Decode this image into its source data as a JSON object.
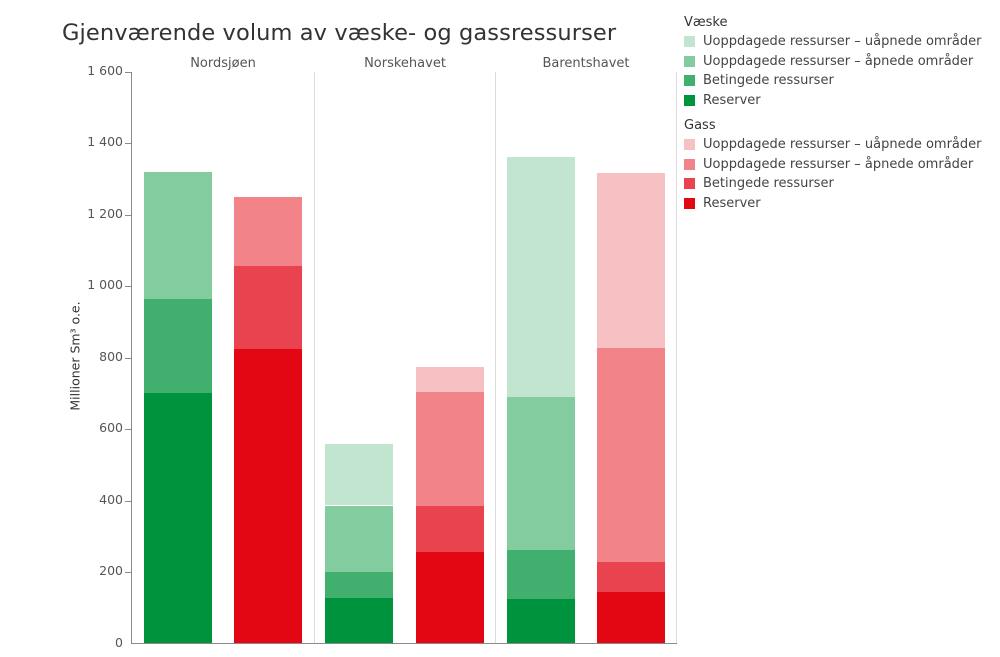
{
  "title": "Gjenværende volum av væske- og gassressurser",
  "panels": [
    "Nordsjøen",
    "Norskehavet",
    "Barentshavet"
  ],
  "y_axis": {
    "label": "Millioner Sm³ o.e.",
    "ticks": [
      "0",
      "200",
      "400",
      "600",
      "800",
      "1 000",
      "1 200",
      "1 400",
      "1 600"
    ]
  },
  "legend": {
    "groups": [
      {
        "title": "Væske",
        "items": [
          {
            "label": "Uoppdagede ressurser – uåpnede områder",
            "color": "#C1E5CF"
          },
          {
            "label": "Uoppdagede ressurser – åpnede områder",
            "color": "#83CCA0"
          },
          {
            "label": "Betingede ressurser",
            "color": "#41B06F"
          },
          {
            "label": "Reserver",
            "color": "#00933D"
          }
        ]
      },
      {
        "title": "Gass",
        "items": [
          {
            "label": "Uoppdagede ressurser – uåpnede områder",
            "color": "#F7C1C4"
          },
          {
            "label": "Uoppdagede ressurser – åpnede områder",
            "color": "#F28388"
          },
          {
            "label": "Betingede ressurser",
            "color": "#E8434E"
          },
          {
            "label": "Reserver",
            "color": "#E30613"
          }
        ]
      }
    ]
  },
  "chart_data": {
    "type": "bar",
    "stacked": true,
    "title": "Gjenværende volum av væske- og gassressurser",
    "xlabel": "",
    "ylabel": "Millioner Sm³ o.e.",
    "ylim": [
      0,
      1600
    ],
    "yticks": [
      0,
      200,
      400,
      600,
      800,
      1000,
      1200,
      1400,
      1600
    ],
    "grid": false,
    "legend_position": "right",
    "categories": [
      "Nordsjøen",
      "Norskehavet",
      "Barentshavet"
    ],
    "stack_order": [
      "Reserver",
      "Betingede ressurser",
      "Uoppdagede ressurser – åpnede områder",
      "Uoppdagede ressurser – uåpnede områder"
    ],
    "series": [
      {
        "group": "Væske",
        "name": "Reserver",
        "color": "#00933D",
        "values": [
          701,
          126,
          124
        ]
      },
      {
        "group": "Væske",
        "name": "Betingede ressurser",
        "color": "#41B06F",
        "values": [
          263,
          74,
          138
        ]
      },
      {
        "group": "Væske",
        "name": "Uoppdagede ressurser – åpnede områder",
        "color": "#83CCA0",
        "values": [
          354,
          186,
          427
        ]
      },
      {
        "group": "Væske",
        "name": "Uoppdagede ressurser – uåpnede områder",
        "color": "#C1E5CF",
        "values": [
          0,
          171,
          673
        ]
      },
      {
        "group": "Gass",
        "name": "Reserver",
        "color": "#E30613",
        "values": [
          824,
          257,
          145
        ]
      },
      {
        "group": "Gass",
        "name": "Betingede ressurser",
        "color": "#E8434E",
        "values": [
          233,
          127,
          82
        ]
      },
      {
        "group": "Gass",
        "name": "Uoppdagede ressurser – åpnede områder",
        "color": "#F28388",
        "values": [
          191,
          319,
          599
        ]
      },
      {
        "group": "Gass",
        "name": "Uoppdagede ressurser – uåpnede områder",
        "color": "#F7C1C4",
        "values": [
          0,
          71,
          489
        ]
      }
    ],
    "totals": {
      "Væske": [
        1318,
        557,
        1362
      ],
      "Gass": [
        1248,
        774,
        1315
      ]
    }
  }
}
